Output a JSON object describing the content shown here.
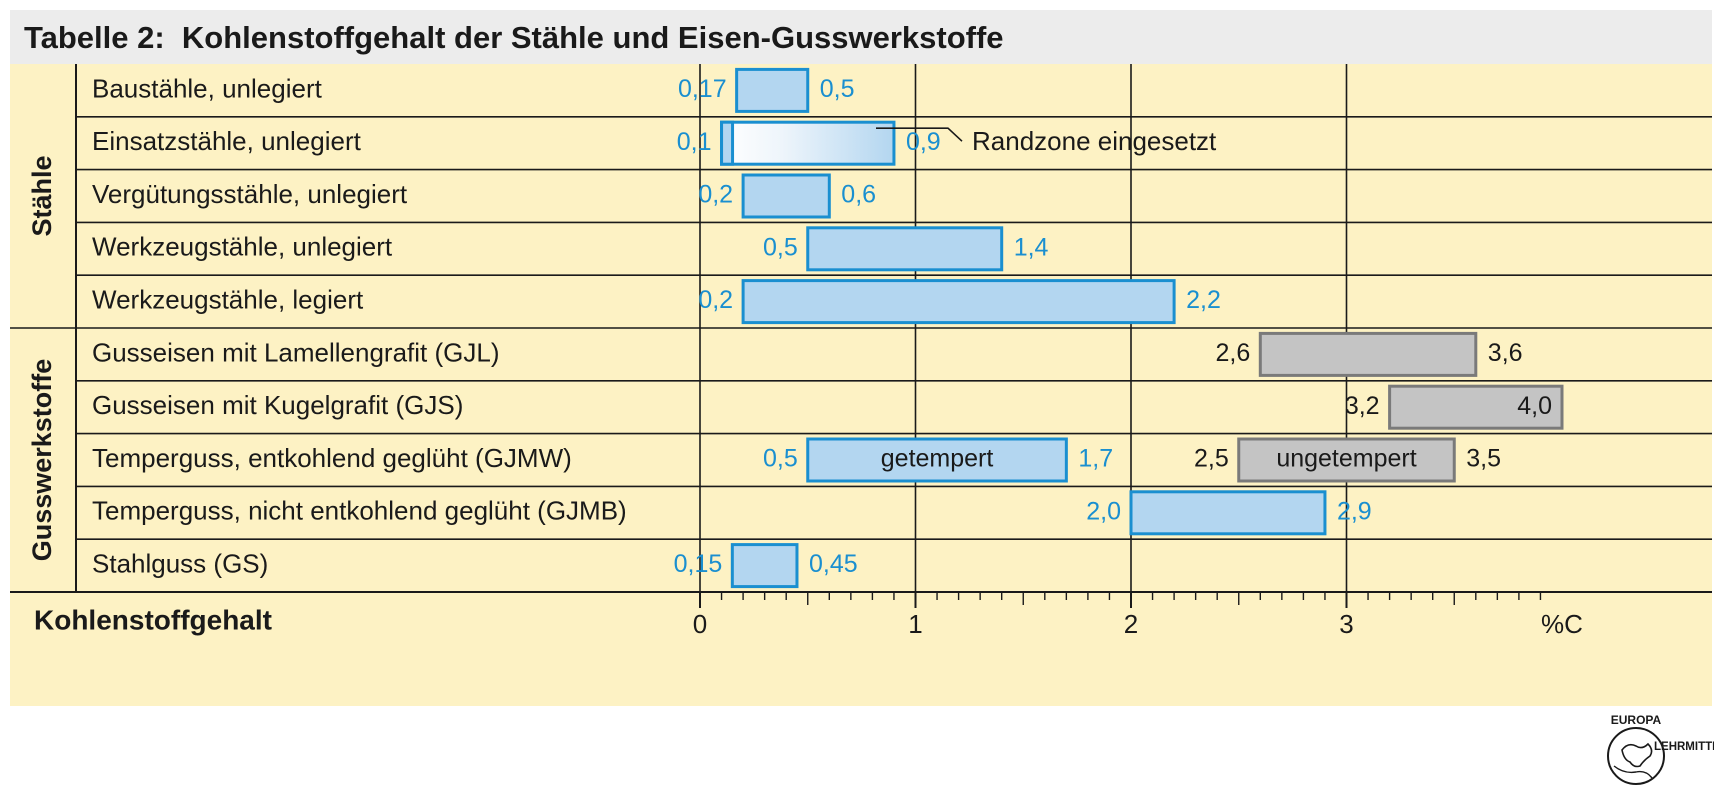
{
  "title": "Tabelle 2:  Kohlenstoffgehalt der Stähle und Eisen-Gusswerkstoffe",
  "colors": {
    "background": "#fdf2c4",
    "blue_fill": "#b3d6f0",
    "blue_stroke": "#1a8fd0",
    "blue_text": "#1a8fd0",
    "gray_fill": "#c4c4c4",
    "gray_stroke": "#7a7a7a",
    "text": "#1a1a1a"
  },
  "groups": [
    {
      "label": "Stähle",
      "rows": [
        0,
        4
      ]
    },
    {
      "label": "Gusswerkstoffe",
      "rows": [
        5,
        9
      ]
    }
  ],
  "chart_data": {
    "type": "bar",
    "orientation": "horizontal-range",
    "xlabel": "Kohlenstoffgehalt",
    "unit_label": "%C",
    "xlim": [
      0,
      3.9
    ],
    "x_ticks": [
      "0",
      "1",
      "2",
      "3"
    ],
    "minor_tick_step": 0.1,
    "grid": true,
    "rows": [
      {
        "category": "Baustähle, unlegiert",
        "bars": [
          {
            "start": 0.17,
            "end": 0.5,
            "start_label": "0,17",
            "end_label": "0,5",
            "style": "blue"
          }
        ]
      },
      {
        "category": "Einsatzstähle, unlegiert",
        "bars": [
          {
            "start": 0.1,
            "end": 0.9,
            "start_label": "0,1",
            "end_label": "0,9",
            "style": "gradient"
          }
        ],
        "annotation": "Randzone eingesetzt"
      },
      {
        "category": "Vergütungsstähle, unlegiert",
        "bars": [
          {
            "start": 0.2,
            "end": 0.6,
            "start_label": "0,2",
            "end_label": "0,6",
            "style": "blue"
          }
        ]
      },
      {
        "category": "Werkzeugstähle, unlegiert",
        "bars": [
          {
            "start": 0.5,
            "end": 1.4,
            "start_label": "0,5",
            "end_label": "1,4",
            "style": "blue"
          }
        ]
      },
      {
        "category": "Werkzeugstähle, legiert",
        "bars": [
          {
            "start": 0.2,
            "end": 2.2,
            "start_label": "0,2",
            "end_label": "2,2",
            "style": "blue"
          }
        ]
      },
      {
        "category": "Gusseisen mit Lamellengrafit (GJL)",
        "bars": [
          {
            "start": 2.6,
            "end": 3.6,
            "start_label": "2,6",
            "end_label": "3,6",
            "style": "gray"
          }
        ]
      },
      {
        "category": "Gusseisen mit Kugelgrafit (GJS)",
        "bars": [
          {
            "start": 3.2,
            "end": 4.0,
            "start_label": "3,2",
            "end_label": "4,0",
            "style": "gray",
            "end_label_inside": true
          }
        ]
      },
      {
        "category": "Temperguss, entkohlend geglüht (GJMW)",
        "bars": [
          {
            "start": 0.5,
            "end": 1.7,
            "start_label": "0,5",
            "end_label": "1,7",
            "style": "blue",
            "inner_label": "getempert"
          },
          {
            "start": 2.5,
            "end": 3.5,
            "start_label": "2,5",
            "end_label": "3,5",
            "style": "gray",
            "inner_label": "ungetempert"
          }
        ]
      },
      {
        "category": "Temperguss, nicht entkohlend geglüht (GJMB)",
        "bars": [
          {
            "start": 2.0,
            "end": 2.9,
            "start_label": "2,0",
            "end_label": "2,9",
            "style": "blue"
          }
        ]
      },
      {
        "category": "Stahlguss (GS)",
        "bars": [
          {
            "start": 0.15,
            "end": 0.45,
            "start_label": "0,15",
            "end_label": "0,45",
            "style": "blue"
          }
        ]
      }
    ]
  },
  "logo": {
    "top_text": "EUROPA",
    "side_text": "LEHRMITTEL"
  }
}
